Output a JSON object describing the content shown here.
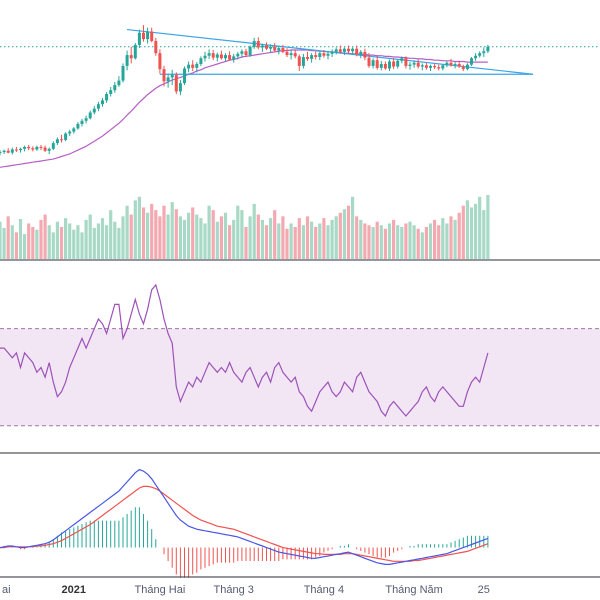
{
  "colors": {
    "up": "#26a69a",
    "down": "#ef5350",
    "vol_up": "#a7d9c6",
    "vol_down": "#f4a9b0",
    "ma": "#b55fc6",
    "trend": "#3ba4e6",
    "price_line": "#26a69a",
    "rsi_line": "#9c52b8",
    "rsi_band": "#f2e6f4",
    "rsi_level": "#9a7c9f",
    "macd": "#4a56e6",
    "signal": "#ef5350",
    "hist_up": "#26a69a",
    "hist_down": "#ef5350",
    "separator": "#2a2e39"
  },
  "x_axis": {
    "labels": [
      {
        "text": "ai",
        "index": 0,
        "bold": false
      },
      {
        "text": "2021",
        "index": 18,
        "bold": true
      },
      {
        "text": "Tháng Hai",
        "index": 39,
        "bold": false
      },
      {
        "text": "Tháng 3",
        "index": 57,
        "bold": false
      },
      {
        "text": "Tháng 4",
        "index": 79,
        "bold": false
      },
      {
        "text": "Tháng Năm",
        "index": 101,
        "bold": false
      },
      {
        "text": "25",
        "index": 118,
        "bold": false
      }
    ]
  },
  "chart_data": {
    "type": "candlestick",
    "title": "",
    "candles": [
      [
        48.0,
        48.4,
        47.6,
        48.1
      ],
      [
        48.1,
        48.5,
        47.8,
        48.3
      ],
      [
        48.3,
        48.7,
        47.9,
        48.0
      ],
      [
        48.0,
        48.8,
        47.7,
        48.5
      ],
      [
        48.5,
        48.9,
        48.1,
        48.4
      ],
      [
        48.4,
        48.8,
        48.0,
        48.6
      ],
      [
        48.6,
        49.1,
        48.2,
        48.9
      ],
      [
        48.9,
        49.2,
        48.4,
        48.7
      ],
      [
        48.7,
        49.0,
        48.2,
        48.5
      ],
      [
        48.5,
        49.1,
        48.3,
        48.9
      ],
      [
        48.9,
        49.2,
        48.4,
        48.8
      ],
      [
        48.8,
        49.1,
        48.1,
        48.3
      ],
      [
        48.3,
        48.8,
        47.8,
        48.6
      ],
      [
        48.6,
        49.8,
        48.4,
        49.5
      ],
      [
        49.5,
        50.4,
        49.2,
        50.1
      ],
      [
        50.1,
        50.8,
        49.6,
        50.0
      ],
      [
        50.0,
        51.2,
        49.8,
        51.0
      ],
      [
        51.0,
        51.6,
        50.6,
        51.3
      ],
      [
        51.3,
        52.0,
        51.0,
        51.8
      ],
      [
        51.8,
        52.8,
        51.6,
        52.5
      ],
      [
        52.5,
        53.3,
        52.1,
        53.0
      ],
      [
        53.0,
        53.8,
        52.6,
        53.4
      ],
      [
        53.4,
        54.6,
        53.2,
        54.3
      ],
      [
        54.3,
        55.3,
        54.0,
        54.9
      ],
      [
        54.9,
        56.0,
        54.5,
        55.6
      ],
      [
        55.6,
        56.6,
        55.2,
        56.2
      ],
      [
        56.2,
        57.5,
        55.8,
        57.2
      ],
      [
        57.2,
        58.3,
        56.8,
        57.8
      ],
      [
        57.8,
        59.1,
        57.4,
        58.6
      ],
      [
        58.6,
        60.0,
        58.3,
        59.3
      ],
      [
        59.3,
        62.0,
        59.0,
        61.6
      ],
      [
        61.6,
        64.0,
        60.9,
        63.3
      ],
      [
        63.3,
        64.6,
        62.0,
        62.8
      ],
      [
        62.8,
        65.2,
        62.6,
        64.9
      ],
      [
        64.9,
        67.3,
        64.4,
        66.8
      ],
      [
        66.8,
        68.0,
        65.4,
        65.8
      ],
      [
        65.8,
        67.6,
        65.1,
        67.0
      ],
      [
        67.0,
        67.6,
        65.3,
        65.5
      ],
      [
        65.5,
        66.0,
        63.2,
        63.6
      ],
      [
        63.6,
        64.2,
        60.4,
        61.1
      ],
      [
        61.1,
        61.6,
        58.4,
        59.2
      ],
      [
        59.2,
        60.4,
        58.2,
        59.8
      ],
      [
        59.8,
        61.0,
        58.6,
        60.2
      ],
      [
        60.2,
        60.6,
        57.2,
        57.6
      ],
      [
        57.6,
        59.4,
        57.0,
        58.9
      ],
      [
        58.9,
        61.5,
        58.6,
        61.2
      ],
      [
        61.2,
        62.3,
        60.6,
        61.8
      ],
      [
        61.8,
        62.5,
        60.8,
        61.3
      ],
      [
        61.3,
        62.2,
        60.6,
        61.9
      ],
      [
        61.9,
        63.1,
        61.6,
        62.8
      ],
      [
        62.8,
        63.8,
        62.3,
        63.2
      ],
      [
        63.2,
        64.2,
        62.7,
        63.6
      ],
      [
        63.6,
        64.1,
        62.5,
        62.9
      ],
      [
        62.9,
        63.7,
        62.3,
        63.4
      ],
      [
        63.4,
        64.0,
        62.6,
        62.8
      ],
      [
        62.8,
        63.6,
        62.3,
        63.3
      ],
      [
        63.3,
        63.9,
        62.4,
        62.6
      ],
      [
        62.6,
        63.5,
        62.1,
        63.1
      ],
      [
        63.1,
        63.8,
        62.6,
        63.5
      ],
      [
        63.5,
        64.2,
        62.9,
        63.9
      ],
      [
        63.9,
        64.3,
        63.0,
        63.3
      ],
      [
        63.3,
        64.8,
        63.0,
        64.6
      ],
      [
        64.6,
        66.0,
        64.3,
        65.5
      ],
      [
        65.5,
        66.1,
        64.2,
        64.5
      ],
      [
        64.5,
        65.1,
        63.8,
        64.8
      ],
      [
        64.8,
        65.3,
        64.1,
        64.3
      ],
      [
        64.3,
        65.0,
        63.7,
        64.6
      ],
      [
        64.6,
        65.2,
        63.9,
        64.0
      ],
      [
        64.0,
        64.8,
        63.4,
        64.4
      ],
      [
        64.4,
        64.9,
        63.6,
        63.8
      ],
      [
        63.8,
        64.4,
        63.0,
        63.3
      ],
      [
        63.3,
        64.0,
        62.6,
        63.6
      ],
      [
        63.6,
        64.2,
        62.8,
        63.1
      ],
      [
        63.1,
        63.4,
        60.8,
        61.6
      ],
      [
        61.6,
        63.5,
        61.2,
        63.0
      ],
      [
        63.0,
        63.8,
        62.4,
        62.7
      ],
      [
        62.7,
        63.6,
        62.1,
        63.3
      ],
      [
        63.3,
        63.9,
        62.6,
        63.0
      ],
      [
        63.0,
        63.8,
        62.5,
        63.6
      ],
      [
        63.6,
        64.1,
        62.9,
        63.2
      ],
      [
        63.2,
        63.9,
        62.6,
        63.5
      ],
      [
        63.5,
        64.2,
        63.0,
        63.8
      ],
      [
        63.8,
        64.5,
        63.4,
        64.2
      ],
      [
        64.2,
        64.8,
        63.5,
        63.8
      ],
      [
        63.8,
        64.5,
        63.3,
        64.3
      ],
      [
        64.3,
        64.8,
        63.5,
        63.9
      ],
      [
        63.9,
        64.5,
        63.4,
        64.3
      ],
      [
        64.3,
        64.8,
        63.1,
        63.4
      ],
      [
        63.4,
        64.1,
        62.8,
        63.8
      ],
      [
        63.8,
        64.3,
        62.5,
        62.9
      ],
      [
        62.9,
        63.6,
        61.3,
        61.6
      ],
      [
        61.6,
        62.8,
        61.2,
        62.5
      ],
      [
        62.5,
        63.2,
        61.0,
        61.3
      ],
      [
        61.3,
        62.4,
        60.9,
        61.9
      ],
      [
        61.9,
        62.3,
        61.0,
        61.2
      ],
      [
        61.2,
        62.6,
        60.8,
        62.3
      ],
      [
        62.3,
        62.8,
        61.1,
        61.5
      ],
      [
        61.5,
        62.6,
        61.2,
        62.4
      ],
      [
        62.4,
        63.1,
        62.0,
        62.8
      ],
      [
        62.8,
        63.1,
        61.2,
        61.6
      ],
      [
        61.6,
        62.2,
        61.0,
        61.8
      ],
      [
        61.8,
        62.5,
        61.3,
        62.1
      ],
      [
        62.1,
        62.6,
        61.2,
        61.5
      ],
      [
        61.5,
        62.0,
        60.9,
        61.7
      ],
      [
        61.7,
        62.1,
        61.0,
        61.3
      ],
      [
        61.3,
        61.8,
        60.8,
        61.6
      ],
      [
        61.6,
        62.0,
        61.1,
        61.4
      ],
      [
        61.4,
        61.8,
        60.9,
        61.2
      ],
      [
        61.2,
        61.9,
        60.9,
        61.7
      ],
      [
        61.7,
        62.3,
        61.4,
        62.1
      ],
      [
        62.1,
        62.7,
        61.5,
        61.7
      ],
      [
        61.7,
        62.2,
        61.2,
        61.9
      ],
      [
        61.9,
        62.4,
        61.3,
        61.5
      ],
      [
        61.5,
        61.8,
        60.8,
        61.1
      ],
      [
        61.1,
        62.0,
        60.9,
        61.8
      ],
      [
        61.8,
        63.0,
        61.6,
        62.8
      ],
      [
        62.8,
        63.6,
        62.4,
        63.2
      ],
      [
        63.2,
        63.9,
        62.9,
        63.6
      ],
      [
        63.6,
        64.5,
        63.0,
        63.9
      ],
      [
        63.9,
        64.9,
        63.6,
        64.6
      ]
    ],
    "ma": [
      45.7,
      45.8,
      45.9,
      46.0,
      46.1,
      46.2,
      46.3,
      46.4,
      46.5,
      46.6,
      46.7,
      46.8,
      46.9,
      47.0,
      47.2,
      47.4,
      47.6,
      47.8,
      48.1,
      48.4,
      48.7,
      49.0,
      49.4,
      49.8,
      50.2,
      50.6,
      51.1,
      51.6,
      52.1,
      52.6,
      53.2,
      53.9,
      54.5,
      55.2,
      55.9,
      56.5,
      57.1,
      57.6,
      58.1,
      58.5,
      58.8,
      59.1,
      59.4,
      59.6,
      59.8,
      60.0,
      60.3,
      60.5,
      60.8,
      61.0,
      61.3,
      61.5,
      61.7,
      61.9,
      62.1,
      62.3,
      62.5,
      62.6,
      62.8,
      63.0,
      63.1,
      63.2,
      63.3,
      63.4,
      63.5,
      63.6,
      63.7,
      63.8,
      63.9,
      64.0,
      64.0,
      64.1,
      64.1,
      64.1,
      64.1,
      64.1,
      64.0,
      64.0,
      63.9,
      63.9,
      63.8,
      63.8,
      63.7,
      63.7,
      63.6,
      63.6,
      63.5,
      63.5,
      63.4,
      63.4,
      63.3,
      63.3,
      63.2,
      63.2,
      63.1,
      63.1,
      63.0,
      63.0,
      62.9,
      62.9,
      62.8,
      62.8,
      62.7,
      62.7,
      62.6,
      62.6,
      62.5,
      62.5,
      62.4,
      62.4,
      62.4,
      62.3,
      62.3,
      62.3,
      62.2,
      62.2,
      62.2,
      62.2,
      62.2,
      62.2
    ],
    "volume": [
      42,
      35,
      48,
      38,
      30,
      45,
      28,
      40,
      36,
      33,
      44,
      50,
      38,
      30,
      42,
      36,
      46,
      40,
      33,
      38,
      30,
      44,
      50,
      35,
      40,
      46,
      38,
      55,
      42,
      35,
      48,
      60,
      50,
      66,
      70,
      58,
      52,
      62,
      55,
      48,
      60,
      50,
      64,
      56,
      48,
      44,
      52,
      58,
      50,
      46,
      40,
      60,
      55,
      42,
      48,
      52,
      38,
      44,
      60,
      55,
      36,
      48,
      62,
      50,
      44,
      38,
      46,
      55,
      40,
      48,
      34,
      40,
      36,
      46,
      38,
      48,
      42,
      36,
      40,
      46,
      38,
      44,
      48,
      52,
      56,
      60,
      70,
      48,
      44,
      40,
      38,
      36,
      42,
      38,
      34,
      40,
      44,
      38,
      36,
      40,
      42,
      38,
      34,
      30,
      36,
      40,
      44,
      38,
      46,
      40,
      48,
      44,
      52,
      60,
      66,
      58,
      62,
      70,
      55,
      72
    ],
    "rsi": [
      62,
      62,
      60,
      58,
      60,
      54,
      60,
      58,
      56,
      52,
      54,
      50,
      56,
      48,
      42,
      44,
      48,
      54,
      58,
      62,
      66,
      62,
      66,
      70,
      74,
      72,
      68,
      74,
      80,
      80,
      66,
      70,
      76,
      82,
      76,
      72,
      78,
      86,
      88,
      82,
      74,
      68,
      64,
      46,
      40,
      44,
      48,
      46,
      50,
      48,
      52,
      56,
      54,
      52,
      54,
      52,
      56,
      52,
      50,
      48,
      52,
      54,
      50,
      46,
      50,
      52,
      48,
      54,
      56,
      52,
      50,
      48,
      50,
      44,
      42,
      38,
      36,
      40,
      44,
      46,
      48,
      44,
      42,
      44,
      48,
      46,
      44,
      50,
      52,
      48,
      44,
      42,
      40,
      36,
      34,
      38,
      40,
      38,
      36,
      34,
      36,
      38,
      40,
      44,
      46,
      42,
      40,
      44,
      46,
      44,
      42,
      40,
      38,
      38,
      44,
      48,
      50,
      48,
      54,
      60
    ],
    "rsi_levels": [
      70,
      30
    ],
    "macd": [
      0.0,
      0.05,
      0.1,
      0.1,
      0.05,
      0.0,
      0.0,
      0.05,
      0.1,
      0.15,
      0.2,
      0.25,
      0.35,
      0.5,
      0.7,
      0.9,
      1.1,
      1.3,
      1.5,
      1.7,
      1.9,
      2.1,
      2.3,
      2.5,
      2.7,
      2.9,
      3.1,
      3.3,
      3.5,
      3.7,
      4.0,
      4.3,
      4.6,
      4.9,
      5.1,
      5.0,
      4.8,
      4.5,
      4.1,
      3.7,
      3.3,
      2.9,
      2.5,
      2.1,
      1.8,
      1.6,
      1.4,
      1.3,
      1.2,
      1.15,
      1.1,
      1.05,
      1.0,
      0.95,
      0.9,
      0.85,
      0.8,
      0.75,
      0.7,
      0.6,
      0.5,
      0.4,
      0.3,
      0.2,
      0.1,
      0.0,
      -0.1,
      -0.2,
      -0.3,
      -0.35,
      -0.4,
      -0.45,
      -0.5,
      -0.55,
      -0.6,
      -0.65,
      -0.7,
      -0.7,
      -0.65,
      -0.6,
      -0.55,
      -0.5,
      -0.45,
      -0.4,
      -0.35,
      -0.3,
      -0.4,
      -0.5,
      -0.6,
      -0.7,
      -0.8,
      -0.9,
      -1.0,
      -1.05,
      -1.1,
      -1.1,
      -1.05,
      -1.0,
      -0.95,
      -0.9,
      -0.85,
      -0.8,
      -0.75,
      -0.7,
      -0.65,
      -0.6,
      -0.55,
      -0.5,
      -0.45,
      -0.4,
      -0.3,
      -0.2,
      -0.1,
      0.0,
      0.1,
      0.2,
      0.3,
      0.4,
      0.5,
      0.6
    ],
    "signal": [
      0.0,
      0.0,
      0.05,
      0.05,
      0.05,
      0.05,
      0.05,
      0.05,
      0.05,
      0.1,
      0.1,
      0.15,
      0.2,
      0.25,
      0.35,
      0.45,
      0.6,
      0.75,
      0.9,
      1.05,
      1.2,
      1.35,
      1.5,
      1.7,
      1.9,
      2.1,
      2.3,
      2.5,
      2.7,
      2.9,
      3.1,
      3.3,
      3.5,
      3.7,
      3.9,
      4.0,
      4.0,
      3.95,
      3.85,
      3.7,
      3.5,
      3.3,
      3.1,
      2.9,
      2.7,
      2.5,
      2.3,
      2.1,
      1.95,
      1.8,
      1.7,
      1.6,
      1.5,
      1.4,
      1.35,
      1.3,
      1.25,
      1.2,
      1.1,
      1.0,
      0.9,
      0.8,
      0.7,
      0.6,
      0.5,
      0.4,
      0.3,
      0.2,
      0.1,
      0.0,
      -0.05,
      -0.1,
      -0.15,
      -0.2,
      -0.25,
      -0.3,
      -0.35,
      -0.4,
      -0.4,
      -0.45,
      -0.45,
      -0.45,
      -0.45,
      -0.45,
      -0.4,
      -0.4,
      -0.4,
      -0.45,
      -0.5,
      -0.55,
      -0.6,
      -0.65,
      -0.7,
      -0.75,
      -0.8,
      -0.85,
      -0.9,
      -0.9,
      -0.9,
      -0.9,
      -0.9,
      -0.85,
      -0.85,
      -0.8,
      -0.75,
      -0.7,
      -0.65,
      -0.6,
      -0.55,
      -0.5,
      -0.45,
      -0.4,
      -0.35,
      -0.3,
      -0.25,
      -0.15,
      -0.05,
      0.05,
      0.15,
      0.25
    ],
    "trendlines": [
      {
        "name": "upper",
        "from": {
          "i": 31,
          "price": 67.3
        },
        "to": {
          "i": 130,
          "price": 60.3
        }
      },
      {
        "name": "lower",
        "from": {
          "i": 39,
          "price": 60.3
        },
        "to": {
          "i": 130,
          "price": 60.3
        }
      }
    ],
    "price_line": 64.6
  }
}
